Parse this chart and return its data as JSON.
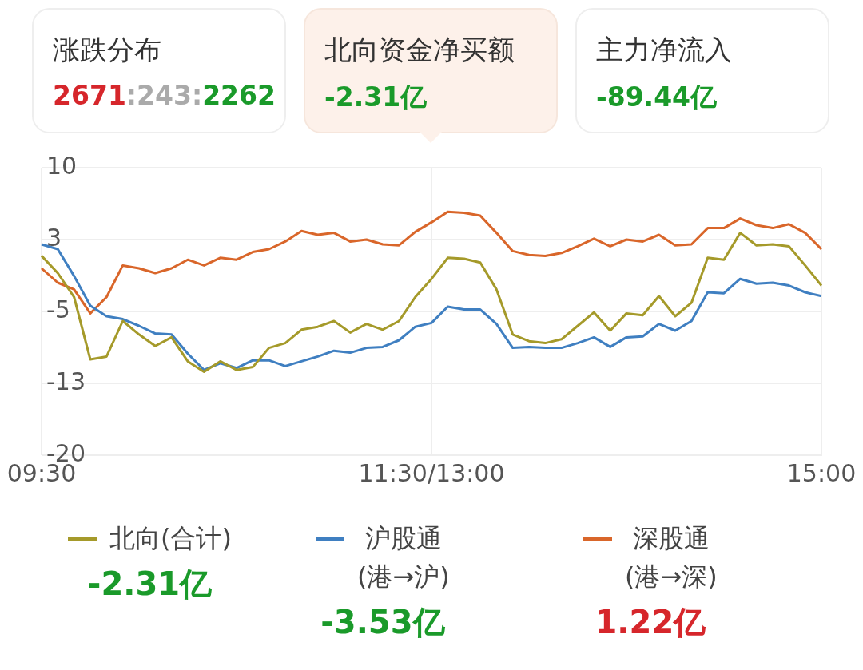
{
  "chart_data": [
    {
      "type": "other",
      "annotations": [
        "涨跌分布",
        "2671:243:2262",
        "北向资金净买额",
        "-2.31亿",
        "主力净流入",
        "-89.44亿"
      ]
    },
    {
      "type": "line",
      "categories": [
        "09:30",
        null,
        null,
        null,
        null,
        null,
        null,
        null,
        null,
        null,
        null,
        null,
        null,
        null,
        null,
        null,
        null,
        null,
        null,
        null,
        null,
        null,
        null,
        null,
        "11:30/13:00",
        null,
        null,
        null,
        null,
        null,
        null,
        null,
        null,
        null,
        null,
        null,
        null,
        null,
        null,
        null,
        null,
        null,
        null,
        null,
        null,
        null,
        null,
        null,
        "15:00"
      ],
      "series": [
        {
          "name": "北向(合计)",
          "color": "#a59a2a",
          "values": [
            0.8,
            -1.0,
            -3.5,
            -10.0,
            -9.7,
            -6.0,
            -7.4,
            -8.6,
            -7.7,
            -10.2,
            -11.3,
            -10.2,
            -11.1,
            -10.8,
            -8.8,
            -8.3,
            -6.9,
            -6.6,
            -6.0,
            -7.2,
            -6.3,
            -6.9,
            -6.0,
            -3.5,
            -1.6,
            0.6,
            0.5,
            0.1,
            -2.7,
            -7.4,
            -8.1,
            -8.3,
            -7.9,
            -6.5,
            -5.1,
            -7.0,
            -5.2,
            -5.4,
            -3.4,
            -5.5,
            -4.1,
            0.6,
            0.4,
            3.2,
            1.9,
            2.0,
            1.8,
            -0.2,
            -2.3
          ]
        },
        {
          "name": "沪股通\n(港→沪)",
          "color": "#3f7fc1",
          "values": [
            2.0,
            1.5,
            -1.3,
            -4.4,
            -5.5,
            -5.8,
            -6.5,
            -7.3,
            -7.4,
            -9.4,
            -11.1,
            -10.4,
            -10.9,
            -10.1,
            -10.1,
            -10.7,
            -10.2,
            -9.7,
            -9.1,
            -9.3,
            -8.8,
            -8.7,
            -8.0,
            -6.6,
            -6.2,
            -4.5,
            -4.8,
            -4.8,
            -6.3,
            -8.8,
            -8.7,
            -8.8,
            -8.8,
            -8.3,
            -7.7,
            -8.7,
            -7.7,
            -7.6,
            -6.3,
            -7.0,
            -6.0,
            -3.0,
            -3.1,
            -1.6,
            -2.1,
            -2.0,
            -2.3,
            -3.0,
            -3.4
          ]
        },
        {
          "name": "深股通\n(港→深)",
          "color": "#d9662a",
          "values": [
            -0.5,
            -2.0,
            -2.7,
            -5.2,
            -3.5,
            -0.2,
            -0.5,
            -1.0,
            -0.5,
            0.4,
            -0.2,
            0.6,
            0.4,
            1.2,
            1.5,
            2.3,
            3.4,
            3.0,
            3.2,
            2.3,
            2.5,
            2.0,
            1.9,
            3.3,
            4.3,
            5.4,
            5.3,
            5.0,
            3.2,
            1.3,
            0.9,
            0.8,
            1.1,
            1.8,
            2.6,
            1.8,
            2.5,
            2.3,
            3.0,
            1.9,
            2.0,
            3.7,
            3.7,
            4.7,
            4.0,
            3.7,
            4.1,
            3.2,
            1.5
          ]
        }
      ],
      "ylim": [
        -20,
        10
      ],
      "yticks": [
        10,
        {
          "value": 2.5,
          "label": "3"
        },
        -5,
        {
          "value": -12.5,
          "label": "-13"
        },
        -20
      ],
      "grid": true,
      "legend": "bottom",
      "marker": "none",
      "line_style": "solid",
      "annotations": [
        "-2.31亿",
        "-3.53亿",
        "1.22亿"
      ]
    }
  ]
}
